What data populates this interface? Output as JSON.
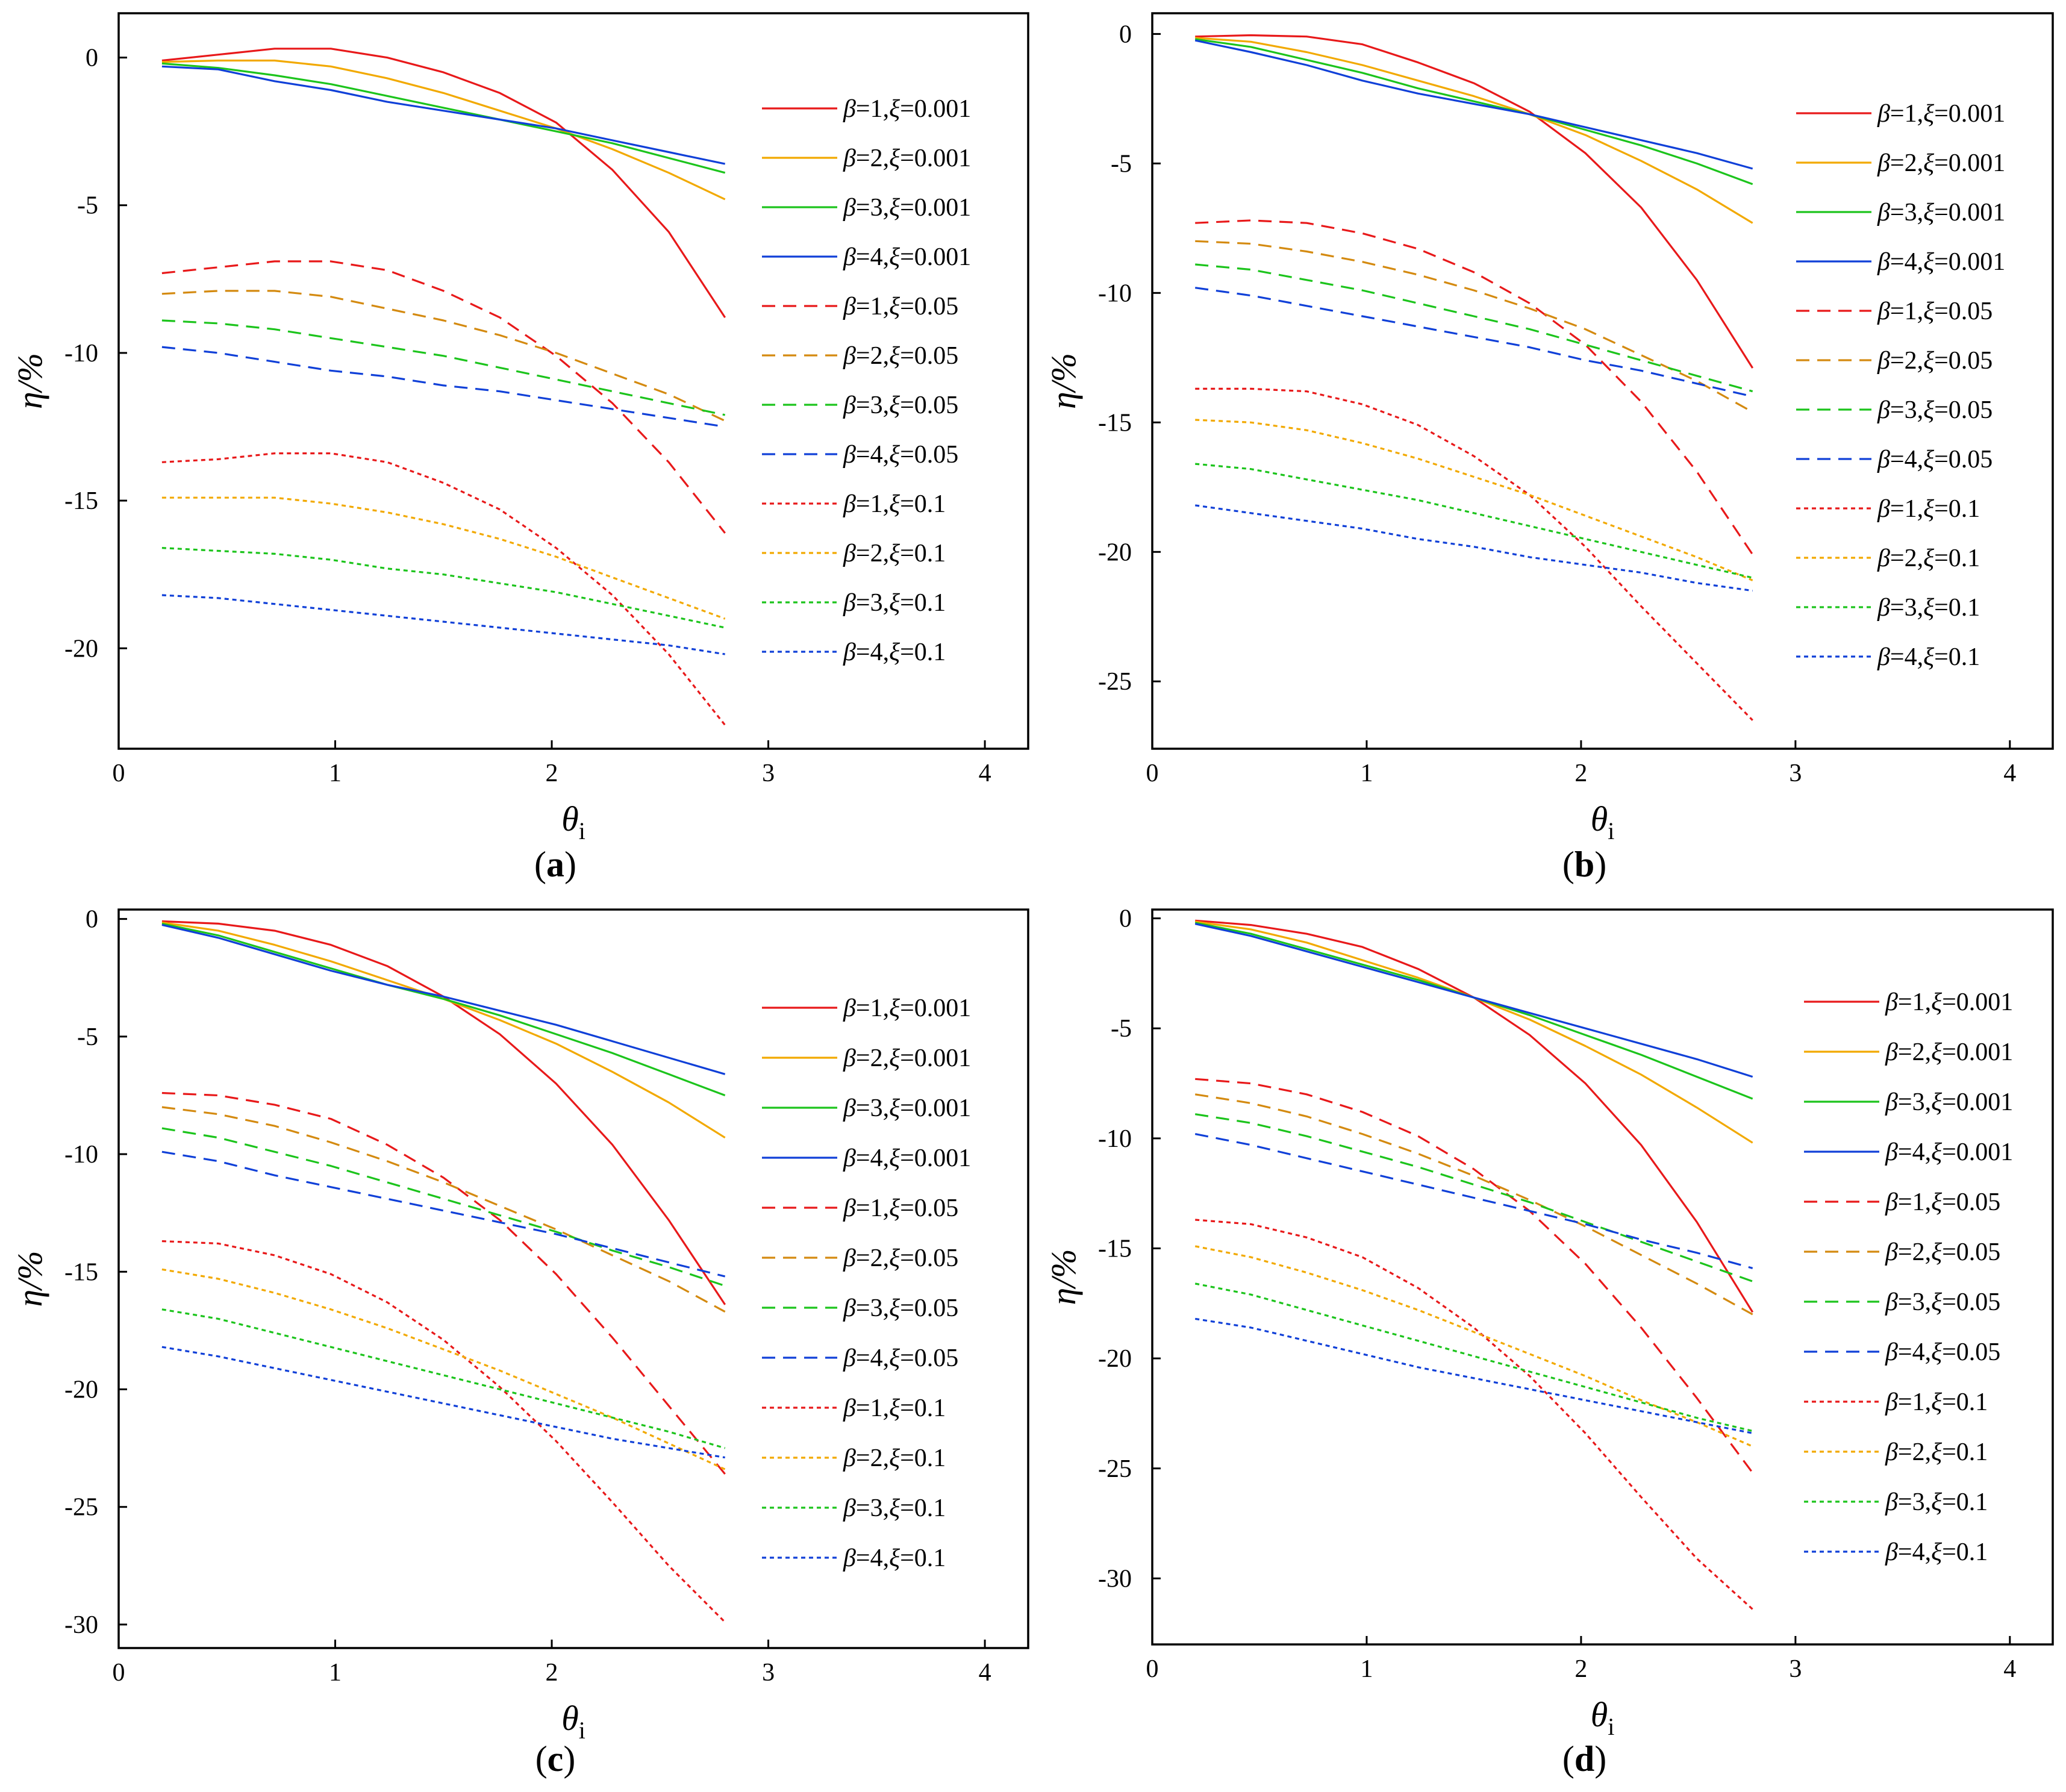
{
  "series_style": [
    {
      "color": "#e8191a",
      "dash": "solid"
    },
    {
      "color": "#f2a900",
      "dash": "solid"
    },
    {
      "color": "#1cc41c",
      "dash": "solid"
    },
    {
      "color": "#1040d8",
      "dash": "solid"
    },
    {
      "color": "#e8191a",
      "dash": "dash"
    },
    {
      "color": "#d48a10",
      "dash": "dash"
    },
    {
      "color": "#1cc41c",
      "dash": "dash"
    },
    {
      "color": "#1040d8",
      "dash": "dash"
    },
    {
      "color": "#e8191a",
      "dash": "dot"
    },
    {
      "color": "#f2a900",
      "dash": "dot"
    },
    {
      "color": "#1cc41c",
      "dash": "dot"
    },
    {
      "color": "#1040d8",
      "dash": "dot"
    }
  ],
  "chart_data": [
    {
      "type": "line",
      "panel": "a",
      "caption": "a",
      "xlabel": "θ",
      "xlabel_sub": "i",
      "ylabel": "η/%",
      "xlim": [
        0,
        4.2
      ],
      "ylim": [
        -23.4,
        1.5
      ],
      "xticks": [
        0,
        1,
        2,
        3,
        4
      ],
      "yticks": [
        0,
        -5,
        -10,
        -15,
        -20
      ],
      "x": [
        0.2,
        0.46,
        0.72,
        0.98,
        1.24,
        1.5,
        1.76,
        2.02,
        2.28,
        2.54,
        2.8
      ],
      "series": [
        {
          "name": "β=1,ξ=0.001",
          "beta": "1",
          "xi": "0.001",
          "values": [
            -0.1,
            0.1,
            0.3,
            0.3,
            0.0,
            -0.5,
            -1.2,
            -2.2,
            -3.8,
            -5.9,
            -8.8
          ]
        },
        {
          "name": "β=2,ξ=0.001",
          "beta": "2",
          "xi": "0.001",
          "values": [
            -0.15,
            -0.1,
            -0.1,
            -0.3,
            -0.7,
            -1.2,
            -1.8,
            -2.4,
            -3.1,
            -3.9,
            -4.8
          ]
        },
        {
          "name": "β=3,ξ=0.001",
          "beta": "3",
          "xi": "0.001",
          "values": [
            -0.2,
            -0.35,
            -0.6,
            -0.9,
            -1.3,
            -1.7,
            -2.1,
            -2.5,
            -2.9,
            -3.4,
            -3.9
          ]
        },
        {
          "name": "β=4,ξ=0.001",
          "beta": "4",
          "xi": "0.001",
          "values": [
            -0.3,
            -0.4,
            -0.8,
            -1.1,
            -1.5,
            -1.8,
            -2.1,
            -2.4,
            -2.8,
            -3.2,
            -3.6
          ]
        },
        {
          "name": "β=1,ξ=0.05",
          "beta": "1",
          "xi": "0.05",
          "values": [
            -7.3,
            -7.1,
            -6.9,
            -6.9,
            -7.2,
            -7.9,
            -8.8,
            -10.1,
            -11.7,
            -13.7,
            -16.1
          ]
        },
        {
          "name": "β=2,ξ=0.05",
          "beta": "2",
          "xi": "0.05",
          "values": [
            -8.0,
            -7.9,
            -7.9,
            -8.1,
            -8.5,
            -8.9,
            -9.4,
            -10.0,
            -10.7,
            -11.4,
            -12.3
          ]
        },
        {
          "name": "β=3,ξ=0.05",
          "beta": "3",
          "xi": "0.05",
          "values": [
            -8.9,
            -9.0,
            -9.2,
            -9.5,
            -9.8,
            -10.1,
            -10.5,
            -10.9,
            -11.3,
            -11.7,
            -12.1
          ]
        },
        {
          "name": "β=4,ξ=0.05",
          "beta": "4",
          "xi": "0.05",
          "values": [
            -9.8,
            -10.0,
            -10.3,
            -10.6,
            -10.8,
            -11.1,
            -11.3,
            -11.6,
            -11.9,
            -12.2,
            -12.5
          ]
        },
        {
          "name": "β=1,ξ=0.1",
          "beta": "1",
          "xi": "0.1",
          "values": [
            -13.7,
            -13.6,
            -13.4,
            -13.4,
            -13.7,
            -14.4,
            -15.3,
            -16.6,
            -18.2,
            -20.2,
            -22.6
          ]
        },
        {
          "name": "β=2,ξ=0.1",
          "beta": "2",
          "xi": "0.1",
          "values": [
            -14.9,
            -14.9,
            -14.9,
            -15.1,
            -15.4,
            -15.8,
            -16.3,
            -16.9,
            -17.6,
            -18.3,
            -19.0
          ]
        },
        {
          "name": "β=3,ξ=0.1",
          "beta": "3",
          "xi": "0.1",
          "values": [
            -16.6,
            -16.7,
            -16.8,
            -17.0,
            -17.3,
            -17.5,
            -17.8,
            -18.1,
            -18.5,
            -18.9,
            -19.3
          ]
        },
        {
          "name": "β=4,ξ=0.1",
          "beta": "4",
          "xi": "0.1",
          "values": [
            -18.2,
            -18.3,
            -18.5,
            -18.7,
            -18.9,
            -19.1,
            -19.3,
            -19.5,
            -19.7,
            -19.9,
            -20.2
          ]
        }
      ]
    },
    {
      "type": "line",
      "panel": "b",
      "caption": "b",
      "xlabel": "θ",
      "xlabel_sub": "i",
      "ylabel": "η/%",
      "xlim": [
        0,
        4.2
      ],
      "ylim": [
        -27.6,
        0.8
      ],
      "xticks": [
        0,
        1,
        2,
        3,
        4
      ],
      "yticks": [
        0,
        -5,
        -10,
        -15,
        -20,
        -25
      ],
      "x": [
        0.2,
        0.46,
        0.72,
        0.98,
        1.24,
        1.5,
        1.76,
        2.02,
        2.28,
        2.54,
        2.8
      ],
      "series": [
        {
          "name": "β=1,ξ=0.001",
          "beta": "1",
          "xi": "0.001",
          "values": [
            -0.1,
            -0.05,
            -0.1,
            -0.4,
            -1.1,
            -1.9,
            -3.0,
            -4.6,
            -6.7,
            -9.5,
            -12.9
          ]
        },
        {
          "name": "β=2,ξ=0.001",
          "beta": "2",
          "xi": "0.001",
          "values": [
            -0.15,
            -0.3,
            -0.7,
            -1.2,
            -1.8,
            -2.4,
            -3.1,
            -3.9,
            -4.9,
            -6.0,
            -7.3
          ]
        },
        {
          "name": "β=3,ξ=0.001",
          "beta": "3",
          "xi": "0.001",
          "values": [
            -0.2,
            -0.5,
            -1.0,
            -1.5,
            -2.1,
            -2.6,
            -3.1,
            -3.7,
            -4.3,
            -5.0,
            -5.8
          ]
        },
        {
          "name": "β=4,ξ=0.001",
          "beta": "4",
          "xi": "0.001",
          "values": [
            -0.25,
            -0.7,
            -1.2,
            -1.8,
            -2.3,
            -2.7,
            -3.1,
            -3.6,
            -4.1,
            -4.6,
            -5.2
          ]
        },
        {
          "name": "β=1,ξ=0.05",
          "beta": "1",
          "xi": "0.05",
          "values": [
            -7.3,
            -7.2,
            -7.3,
            -7.7,
            -8.3,
            -9.2,
            -10.4,
            -12.0,
            -14.2,
            -16.9,
            -20.1
          ]
        },
        {
          "name": "β=2,ξ=0.05",
          "beta": "2",
          "xi": "0.05",
          "values": [
            -8.0,
            -8.1,
            -8.4,
            -8.8,
            -9.3,
            -9.9,
            -10.6,
            -11.4,
            -12.4,
            -13.4,
            -14.6
          ]
        },
        {
          "name": "β=3,ξ=0.05",
          "beta": "3",
          "xi": "0.05",
          "values": [
            -8.9,
            -9.1,
            -9.5,
            -9.9,
            -10.4,
            -10.9,
            -11.4,
            -12.0,
            -12.6,
            -13.2,
            -13.8
          ]
        },
        {
          "name": "β=4,ξ=0.05",
          "beta": "4",
          "xi": "0.05",
          "values": [
            -9.8,
            -10.1,
            -10.5,
            -10.9,
            -11.3,
            -11.7,
            -12.1,
            -12.6,
            -13.0,
            -13.5,
            -14.0
          ]
        },
        {
          "name": "β=1,ξ=0.1",
          "beta": "1",
          "xi": "0.1",
          "values": [
            -13.7,
            -13.7,
            -13.8,
            -14.3,
            -15.1,
            -16.3,
            -17.8,
            -19.8,
            -22.1,
            -24.3,
            -26.5
          ]
        },
        {
          "name": "β=2,ξ=0.1",
          "beta": "2",
          "xi": "0.1",
          "values": [
            -14.9,
            -15.0,
            -15.3,
            -15.8,
            -16.4,
            -17.1,
            -17.8,
            -18.6,
            -19.4,
            -20.2,
            -21.1
          ]
        },
        {
          "name": "β=3,ξ=0.1",
          "beta": "3",
          "xi": "0.1",
          "values": [
            -16.6,
            -16.8,
            -17.2,
            -17.6,
            -18.0,
            -18.5,
            -19.0,
            -19.5,
            -20.0,
            -20.5,
            -21.0
          ]
        },
        {
          "name": "β=4,ξ=0.1",
          "beta": "4",
          "xi": "0.1",
          "values": [
            -18.2,
            -18.5,
            -18.8,
            -19.1,
            -19.5,
            -19.8,
            -20.2,
            -20.5,
            -20.8,
            -21.2,
            -21.5
          ]
        }
      ]
    },
    {
      "type": "line",
      "panel": "c",
      "caption": "c",
      "xlabel": "θ",
      "xlabel_sub": "i",
      "ylabel": "η/%",
      "xlim": [
        0,
        4.2
      ],
      "ylim": [
        -31.0,
        0.4
      ],
      "xticks": [
        0,
        1,
        2,
        3,
        4
      ],
      "yticks": [
        0,
        -5,
        -10,
        -15,
        -20,
        -25,
        -30
      ],
      "x": [
        0.2,
        0.46,
        0.72,
        0.98,
        1.24,
        1.5,
        1.76,
        2.02,
        2.28,
        2.54,
        2.8
      ],
      "series": [
        {
          "name": "β=1,ξ=0.001",
          "beta": "1",
          "xi": "0.001",
          "values": [
            -0.1,
            -0.2,
            -0.5,
            -1.1,
            -2.0,
            -3.3,
            -4.9,
            -7.0,
            -9.6,
            -12.8,
            -16.4
          ]
        },
        {
          "name": "β=2,ξ=0.001",
          "beta": "2",
          "xi": "0.001",
          "values": [
            -0.15,
            -0.5,
            -1.1,
            -1.8,
            -2.6,
            -3.4,
            -4.3,
            -5.3,
            -6.5,
            -7.8,
            -9.3
          ]
        },
        {
          "name": "β=3,ξ=0.001",
          "beta": "3",
          "xi": "0.001",
          "values": [
            -0.2,
            -0.7,
            -1.4,
            -2.1,
            -2.8,
            -3.4,
            -4.1,
            -4.9,
            -5.7,
            -6.6,
            -7.5
          ]
        },
        {
          "name": "β=4,ξ=0.001",
          "beta": "4",
          "xi": "0.001",
          "values": [
            -0.25,
            -0.8,
            -1.5,
            -2.2,
            -2.8,
            -3.3,
            -3.9,
            -4.5,
            -5.2,
            -5.9,
            -6.6
          ]
        },
        {
          "name": "β=1,ξ=0.05",
          "beta": "1",
          "xi": "0.05",
          "values": [
            -7.4,
            -7.5,
            -7.9,
            -8.5,
            -9.6,
            -11.0,
            -12.8,
            -15.1,
            -17.8,
            -20.7,
            -23.6
          ]
        },
        {
          "name": "β=2,ξ=0.05",
          "beta": "2",
          "xi": "0.05",
          "values": [
            -8.0,
            -8.3,
            -8.8,
            -9.5,
            -10.3,
            -11.2,
            -12.2,
            -13.2,
            -14.3,
            -15.4,
            -16.7
          ]
        },
        {
          "name": "β=3,ξ=0.05",
          "beta": "3",
          "xi": "0.05",
          "values": [
            -8.9,
            -9.3,
            -9.9,
            -10.5,
            -11.2,
            -11.9,
            -12.6,
            -13.3,
            -14.1,
            -14.8,
            -15.6
          ]
        },
        {
          "name": "β=4,ξ=0.05",
          "beta": "4",
          "xi": "0.05",
          "values": [
            -9.9,
            -10.3,
            -10.9,
            -11.4,
            -11.9,
            -12.4,
            -12.9,
            -13.4,
            -14.0,
            -14.6,
            -15.2
          ]
        },
        {
          "name": "β=1,ξ=0.1",
          "beta": "1",
          "xi": "0.1",
          "values": [
            -13.7,
            -13.8,
            -14.3,
            -15.1,
            -16.3,
            -17.9,
            -19.9,
            -22.2,
            -24.8,
            -27.5,
            -29.9
          ]
        },
        {
          "name": "β=2,ξ=0.1",
          "beta": "2",
          "xi": "0.1",
          "values": [
            -14.9,
            -15.3,
            -15.9,
            -16.6,
            -17.4,
            -18.3,
            -19.2,
            -20.2,
            -21.2,
            -22.3,
            -23.4
          ]
        },
        {
          "name": "β=3,ξ=0.1",
          "beta": "3",
          "xi": "0.1",
          "values": [
            -16.6,
            -17.0,
            -17.6,
            -18.2,
            -18.8,
            -19.4,
            -20.0,
            -20.6,
            -21.2,
            -21.8,
            -22.5
          ]
        },
        {
          "name": "β=4,ξ=0.1",
          "beta": "4",
          "xi": "0.1",
          "values": [
            -18.2,
            -18.6,
            -19.1,
            -19.6,
            -20.1,
            -20.6,
            -21.1,
            -21.6,
            -22.1,
            -22.5,
            -22.9
          ]
        }
      ]
    },
    {
      "type": "line",
      "panel": "d",
      "caption": "d",
      "xlabel": "θ",
      "xlabel_sub": "i",
      "ylabel": "η/%",
      "xlim": [
        0,
        4.2
      ],
      "ylim": [
        -33.0,
        0.4
      ],
      "xticks": [
        0,
        1,
        2,
        3,
        4
      ],
      "yticks": [
        0,
        -5,
        -10,
        -15,
        -20,
        -25,
        -30
      ],
      "x": [
        0.2,
        0.46,
        0.72,
        0.98,
        1.24,
        1.5,
        1.76,
        2.02,
        2.28,
        2.54,
        2.8
      ],
      "series": [
        {
          "name": "β=1,ξ=0.001",
          "beta": "1",
          "xi": "0.001",
          "values": [
            -0.1,
            -0.3,
            -0.7,
            -1.3,
            -2.3,
            -3.6,
            -5.3,
            -7.5,
            -10.3,
            -13.8,
            -17.9
          ]
        },
        {
          "name": "β=2,ξ=0.001",
          "beta": "2",
          "xi": "0.001",
          "values": [
            -0.15,
            -0.5,
            -1.1,
            -1.9,
            -2.7,
            -3.6,
            -4.6,
            -5.8,
            -7.1,
            -8.6,
            -10.2
          ]
        },
        {
          "name": "β=3,ξ=0.001",
          "beta": "3",
          "xi": "0.001",
          "values": [
            -0.2,
            -0.7,
            -1.4,
            -2.1,
            -2.8,
            -3.6,
            -4.4,
            -5.3,
            -6.2,
            -7.2,
            -8.2
          ]
        },
        {
          "name": "β=4,ξ=0.001",
          "beta": "4",
          "xi": "0.001",
          "values": [
            -0.25,
            -0.8,
            -1.5,
            -2.2,
            -2.9,
            -3.6,
            -4.3,
            -5.0,
            -5.7,
            -6.4,
            -7.2
          ]
        },
        {
          "name": "β=1,ξ=0.05",
          "beta": "1",
          "xi": "0.05",
          "values": [
            -7.3,
            -7.5,
            -8.0,
            -8.8,
            -9.9,
            -11.4,
            -13.3,
            -15.7,
            -18.6,
            -21.8,
            -25.2
          ]
        },
        {
          "name": "β=2,ξ=0.05",
          "beta": "2",
          "xi": "0.05",
          "values": [
            -8.0,
            -8.4,
            -9.0,
            -9.8,
            -10.7,
            -11.7,
            -12.8,
            -14.0,
            -15.3,
            -16.6,
            -18.0
          ]
        },
        {
          "name": "β=3,ξ=0.05",
          "beta": "3",
          "xi": "0.05",
          "values": [
            -8.9,
            -9.3,
            -9.9,
            -10.6,
            -11.3,
            -12.1,
            -12.9,
            -13.8,
            -14.7,
            -15.6,
            -16.5
          ]
        },
        {
          "name": "β=4,ξ=0.05",
          "beta": "4",
          "xi": "0.05",
          "values": [
            -9.8,
            -10.3,
            -10.9,
            -11.5,
            -12.1,
            -12.7,
            -13.3,
            -13.9,
            -14.6,
            -15.2,
            -15.9
          ]
        },
        {
          "name": "β=1,ξ=0.1",
          "beta": "1",
          "xi": "0.1",
          "values": [
            -13.7,
            -13.9,
            -14.5,
            -15.4,
            -16.8,
            -18.6,
            -20.8,
            -23.4,
            -26.3,
            -29.1,
            -31.4
          ]
        },
        {
          "name": "β=2,ξ=0.1",
          "beta": "2",
          "xi": "0.1",
          "values": [
            -14.9,
            -15.4,
            -16.1,
            -16.9,
            -17.8,
            -18.8,
            -19.8,
            -20.8,
            -21.9,
            -22.9,
            -24.0
          ]
        },
        {
          "name": "β=3,ξ=0.1",
          "beta": "3",
          "xi": "0.1",
          "values": [
            -16.6,
            -17.1,
            -17.8,
            -18.5,
            -19.2,
            -19.9,
            -20.6,
            -21.3,
            -22.0,
            -22.7,
            -23.3
          ]
        },
        {
          "name": "β=4,ξ=0.1",
          "beta": "4",
          "xi": "0.1",
          "values": [
            -18.2,
            -18.6,
            -19.2,
            -19.8,
            -20.4,
            -20.9,
            -21.4,
            -21.9,
            -22.4,
            -22.9,
            -23.4
          ]
        }
      ]
    }
  ]
}
